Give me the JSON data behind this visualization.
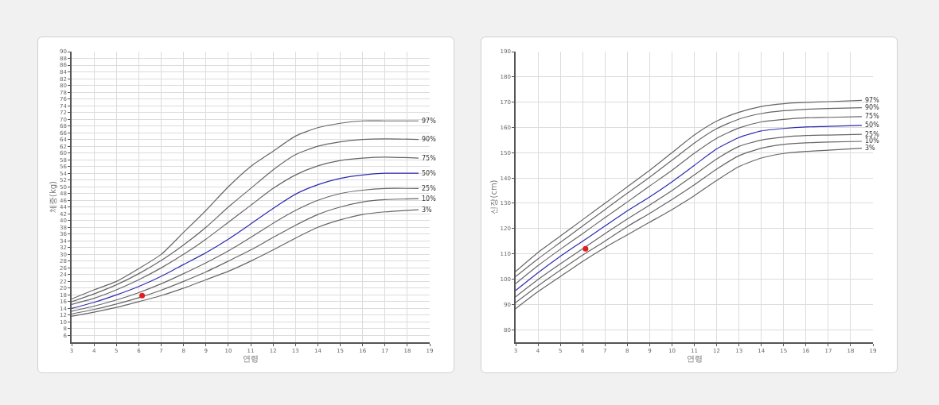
{
  "chart_data": [
    {
      "type": "line",
      "xlabel": "연령",
      "ylabel": "체중(kg)",
      "x": [
        3,
        4,
        5,
        6,
        7,
        8,
        9,
        10,
        11,
        12,
        13,
        14,
        15,
        16,
        17,
        18.5
      ],
      "xlim": [
        3,
        19
      ],
      "xticks": [
        3,
        4,
        5,
        6,
        7,
        8,
        9,
        10,
        11,
        12,
        13,
        14,
        15,
        16,
        17,
        18,
        19
      ],
      "ylim": [
        4,
        90
      ],
      "yticks": [
        6,
        8,
        10,
        12,
        14,
        16,
        18,
        20,
        22,
        24,
        26,
        28,
        30,
        32,
        34,
        36,
        38,
        40,
        42,
        44,
        46,
        48,
        50,
        52,
        54,
        56,
        58,
        60,
        62,
        64,
        66,
        68,
        70,
        72,
        74,
        76,
        78,
        80,
        82,
        84,
        86,
        88,
        90
      ],
      "grid": true,
      "legend": false,
      "line_style": "solid",
      "series": [
        {
          "name": "97%",
          "color": "#666666",
          "values": [
            16.8,
            19.5,
            22,
            25.8,
            30,
            36.5,
            43,
            50,
            56,
            60.5,
            65,
            67.5,
            68.8,
            69.5,
            69.5,
            69.5
          ]
        },
        {
          "name": "90%",
          "color": "#666666",
          "values": [
            16,
            18.3,
            21,
            24.3,
            28.2,
            32.8,
            38,
            44,
            49.5,
            55,
            59.5,
            62,
            63.3,
            64,
            64.2,
            64
          ]
        },
        {
          "name": "75%",
          "color": "#666666",
          "values": [
            15.2,
            17,
            19.5,
            22.5,
            26,
            30,
            34.5,
            39.5,
            44.5,
            49.5,
            53.5,
            56.2,
            57.8,
            58.5,
            58.8,
            58.5
          ]
        },
        {
          "name": "50%",
          "color": "#2b2bb0",
          "values": [
            14,
            15.8,
            18,
            20.5,
            23.5,
            27,
            30.5,
            34.5,
            39,
            43.6,
            47.8,
            50.6,
            52.5,
            53.5,
            54,
            54
          ]
        },
        {
          "name": "25%",
          "color": "#666666",
          "values": [
            13.2,
            14.7,
            16.5,
            18.7,
            21.3,
            24.3,
            27.5,
            31,
            35,
            39.2,
            43,
            46,
            48,
            49,
            49.5,
            49.5
          ]
        },
        {
          "name": "10%",
          "color": "#666666",
          "values": [
            12.4,
            13.7,
            15.3,
            17.2,
            19.4,
            22,
            24.8,
            28,
            31.3,
            35,
            38.6,
            41.8,
            44,
            45.5,
            46.2,
            46.5
          ]
        },
        {
          "name": "3%",
          "color": "#666666",
          "values": [
            11.7,
            12.9,
            14.3,
            16,
            17.8,
            20,
            22.5,
            25,
            28,
            31.3,
            34.8,
            38,
            40.2,
            41.8,
            42.6,
            43.2
          ]
        },
        {
          "type": "scatter",
          "marker": "circle",
          "color": "#e02020",
          "x": [
            6.15
          ],
          "values": [
            17.8
          ]
        }
      ]
    },
    {
      "type": "line",
      "xlabel": "연령",
      "ylabel": "신장(cm)",
      "x": [
        3,
        4,
        5,
        6,
        7,
        8,
        9,
        10,
        11,
        12,
        13,
        14,
        15,
        16,
        17,
        18.5
      ],
      "xlim": [
        3,
        19
      ],
      "xticks": [
        3,
        4,
        5,
        6,
        7,
        8,
        9,
        10,
        11,
        12,
        13,
        14,
        15,
        16,
        17,
        18,
        19
      ],
      "ylim": [
        75,
        190
      ],
      "yticks": [
        80,
        90,
        100,
        110,
        120,
        130,
        140,
        150,
        160,
        170,
        180,
        190
      ],
      "grid": true,
      "legend": false,
      "line_style": "solid",
      "series": [
        {
          "name": "97%",
          "color": "#666666",
          "values": [
            103,
            110.5,
            117,
            123.5,
            130,
            136.5,
            143,
            150,
            157,
            162.5,
            166,
            168.3,
            169.4,
            169.9,
            170.2,
            170.7
          ]
        },
        {
          "name": "90%",
          "color": "#666666",
          "values": [
            101,
            108,
            114.5,
            121,
            127.5,
            134,
            140.3,
            147,
            153.8,
            159.5,
            163.3,
            165.5,
            166.6,
            167.2,
            167.5,
            167.8
          ]
        },
        {
          "name": "75%",
          "color": "#666666",
          "values": [
            98.2,
            105.3,
            111.8,
            118,
            124.3,
            130.5,
            136.8,
            143,
            149.8,
            155.7,
            159.8,
            162.2,
            163.2,
            163.8,
            164,
            164.3
          ]
        },
        {
          "name": "50%",
          "color": "#2b2bb0",
          "values": [
            95.5,
            102.5,
            109,
            115,
            121,
            127,
            132.5,
            138.5,
            145,
            151.5,
            156,
            158.6,
            159.6,
            160.2,
            160.4,
            160.8
          ]
        },
        {
          "name": "25%",
          "color": "#666666",
          "values": [
            93,
            99.8,
            106,
            112,
            118,
            123.8,
            129.3,
            135,
            141.2,
            147.5,
            152.5,
            155,
            156.2,
            156.8,
            157,
            157.3
          ]
        },
        {
          "name": "10%",
          "color": "#666666",
          "values": [
            90.7,
            97.3,
            103.5,
            109.5,
            115,
            120.8,
            126,
            131.5,
            137.3,
            143.5,
            148.8,
            151.8,
            153.3,
            153.9,
            154.2,
            154.5
          ]
        },
        {
          "name": "3%",
          "color": "#666666",
          "values": [
            88.3,
            95,
            101,
            107,
            112.5,
            117.5,
            122.5,
            127.5,
            133,
            139,
            144.5,
            147.9,
            149.7,
            150.5,
            151,
            151.8
          ]
        },
        {
          "type": "scatter",
          "marker": "circle",
          "color": "#e02020",
          "x": [
            6.13
          ],
          "values": [
            112
          ]
        }
      ]
    }
  ]
}
